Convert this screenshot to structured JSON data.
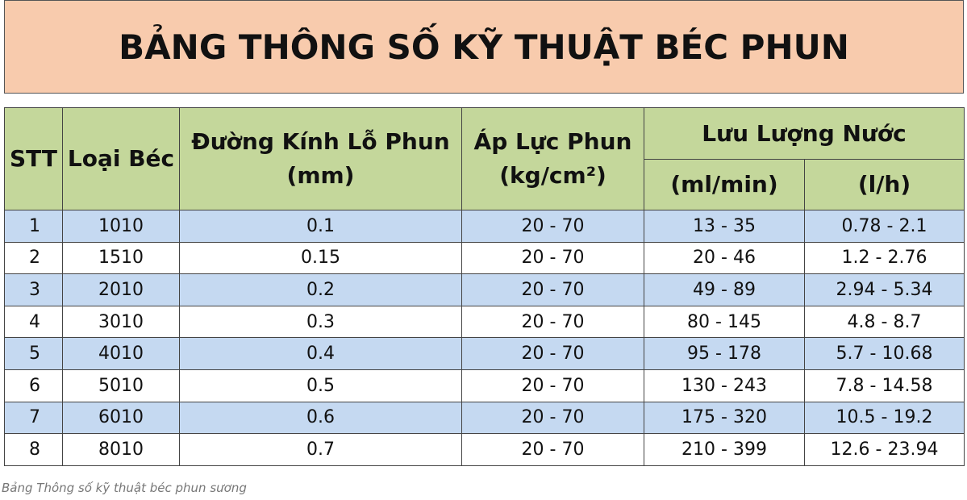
{
  "header": {
    "title": "BẢNG THÔNG SỐ KỸ THUẬT BÉC PHUN"
  },
  "table": {
    "columns": {
      "stt": "STT",
      "type": "Loại Béc",
      "diameter": "Đường Kính Lỗ Phun (mm)",
      "pressure": "Áp Lực Phun (kg/cm²)",
      "flow": "Lưu Lượng Nước",
      "flow_ml": "(ml/min)",
      "flow_lh": "(l/h)"
    },
    "rows": [
      [
        "1",
        "1010",
        "0.1",
        "20 - 70",
        "13 - 35",
        "0.78 - 2.1"
      ],
      [
        "2",
        "1510",
        "0.15",
        "20 - 70",
        "20 - 46",
        "1.2 - 2.76"
      ],
      [
        "3",
        "2010",
        "0.2",
        "20 - 70",
        "49 - 89",
        "2.94 - 5.34"
      ],
      [
        "4",
        "3010",
        "0.3",
        "20 - 70",
        "80 - 145",
        "4.8 - 8.7"
      ],
      [
        "5",
        "4010",
        "0.4",
        "20 - 70",
        "95 - 178",
        "5.7 - 10.68"
      ],
      [
        "6",
        "5010",
        "0.5",
        "20 - 70",
        "130 - 243",
        "7.8 - 14.58"
      ],
      [
        "7",
        "6010",
        "0.6",
        "20 - 70",
        "175 - 320",
        "10.5 - 19.2"
      ],
      [
        "8",
        "8010",
        "0.7",
        "20 - 70",
        "210 - 399",
        "12.6 - 23.94"
      ]
    ]
  },
  "caption": "Bảng Thông số kỹ thuật béc phun sương"
}
